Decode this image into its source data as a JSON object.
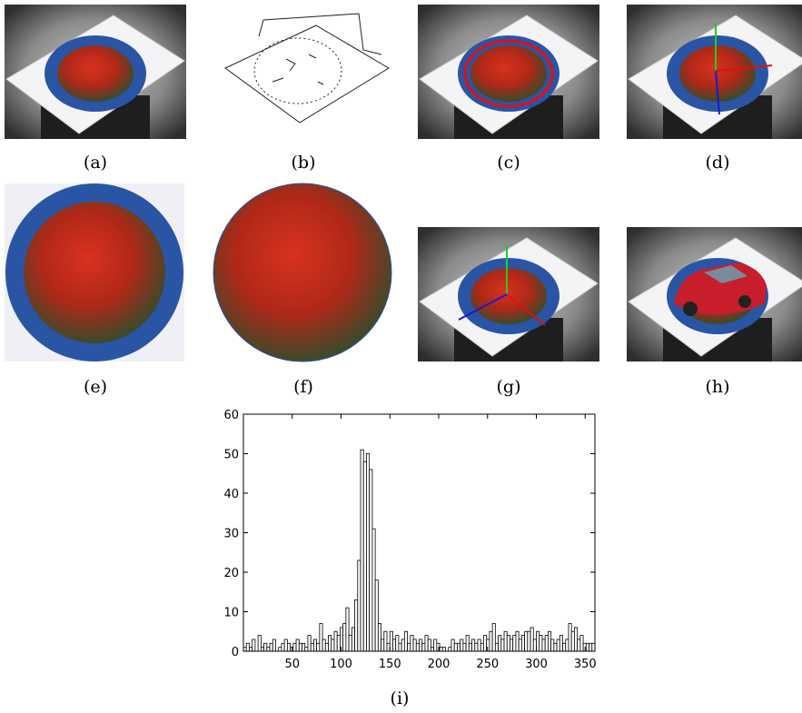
{
  "captions": [
    "(a)",
    "(b)",
    "(c)",
    "(d)",
    "(e)",
    "(f)",
    "(g)",
    "(h)",
    "(i)"
  ],
  "chart_data": {
    "type": "histogram",
    "bins": [
      0,
      3,
      6,
      9,
      12,
      15,
      18,
      21,
      24,
      27,
      30,
      33,
      36,
      39,
      42,
      45,
      48,
      51,
      54,
      57,
      60,
      63,
      66,
      69,
      72,
      75,
      78,
      81,
      84,
      87,
      90,
      93,
      96,
      99,
      102,
      105,
      108,
      111,
      114,
      117,
      120,
      123,
      126,
      129,
      132,
      135,
      138,
      141,
      144,
      147,
      150,
      153,
      156,
      159,
      162,
      165,
      168,
      171,
      174,
      177,
      180,
      183,
      186,
      189,
      192,
      195,
      198,
      201,
      204,
      207,
      210,
      213,
      216,
      219,
      222,
      225,
      228,
      231,
      234,
      237,
      240,
      243,
      246,
      249,
      252,
      255,
      258,
      261,
      264,
      267,
      270,
      273,
      276,
      279,
      282,
      285,
      288,
      291,
      294,
      297,
      300,
      303,
      306,
      309,
      312,
      315,
      318,
      321,
      324,
      327,
      330,
      333,
      336,
      339,
      342,
      345,
      348,
      351,
      354,
      357,
      360
    ],
    "values": [
      1,
      2,
      1,
      3,
      0,
      4,
      1,
      2,
      1,
      2,
      3,
      0,
      1,
      2,
      3,
      2,
      1,
      2,
      3,
      2,
      2,
      1,
      4,
      2,
      3,
      2,
      7,
      3,
      2,
      4,
      3,
      5,
      4,
      6,
      7,
      11,
      4,
      6,
      13,
      23,
      51,
      48,
      50,
      46,
      31,
      18,
      7,
      3,
      5,
      2,
      5,
      3,
      4,
      2,
      3,
      5,
      2,
      4,
      3,
      2,
      3,
      2,
      4,
      3,
      1,
      3,
      2,
      1,
      1,
      0,
      1,
      3,
      2,
      2,
      3,
      2,
      4,
      2,
      3,
      2,
      3,
      2,
      4,
      3,
      5,
      7,
      2,
      4,
      3,
      5,
      4,
      3,
      4,
      5,
      3,
      4,
      5,
      5,
      6,
      3,
      5,
      4,
      3,
      4,
      5,
      3,
      2,
      3,
      4,
      2,
      3,
      7,
      5,
      6,
      3,
      4,
      2,
      2,
      2,
      2
    ],
    "color": "#ffffff",
    "xlim": [
      0,
      360
    ],
    "ylim": [
      0,
      60
    ],
    "xticks": [
      50,
      100,
      150,
      200,
      250,
      300,
      350
    ],
    "yticks": [
      0,
      10,
      20,
      30,
      40,
      50,
      60
    ]
  }
}
